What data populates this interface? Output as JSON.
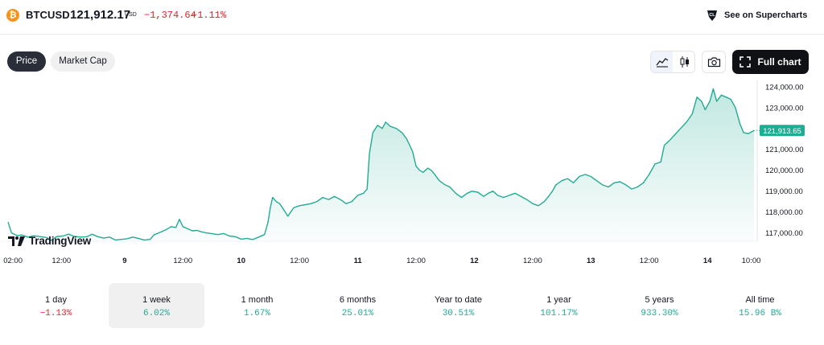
{
  "header": {
    "logo_letter": "₿",
    "symbol": "BTCUSD",
    "price": "121,912.17",
    "price_unit": "USD",
    "change": "−1,374.64",
    "change_pct": "−1.11%",
    "supercharts_label": "See on Supercharts",
    "change_color": "#e5202e"
  },
  "toolbar": {
    "tabs": [
      {
        "label": "Price",
        "active": true
      },
      {
        "label": "Market Cap",
        "active": false
      }
    ],
    "full_chart_label": "Full chart",
    "icons": [
      "area-chart-icon",
      "candlestick-icon",
      "camera-icon",
      "fullscreen-icon"
    ]
  },
  "chart_data": {
    "type": "area",
    "title": "",
    "xlabel": "",
    "ylabel": "",
    "line_color": "#22ab94",
    "fill_color": "#22ab94",
    "ylim": [
      116600,
      124300
    ],
    "y_ticks": [
      124000,
      123000,
      122000,
      121000,
      120000,
      119000,
      118000,
      117000
    ],
    "y_tick_labels": [
      "124,000.00",
      "123,000.00",
      "122,000.00",
      "121,000.00",
      "120,000.00",
      "119,000.00",
      "118,000.00",
      "117,000.00"
    ],
    "x_ticks": [
      {
        "day": 0.042,
        "label": "02:00"
      },
      {
        "day": 0.458,
        "label": "12:00"
      },
      {
        "day": 1.0,
        "label": "9"
      },
      {
        "day": 1.5,
        "label": "12:00"
      },
      {
        "day": 2.0,
        "label": "10"
      },
      {
        "day": 2.5,
        "label": "12:00"
      },
      {
        "day": 3.0,
        "label": "11"
      },
      {
        "day": 3.5,
        "label": "12:00"
      },
      {
        "day": 4.0,
        "label": "12"
      },
      {
        "day": 4.5,
        "label": "12:00"
      },
      {
        "day": 5.0,
        "label": "13"
      },
      {
        "day": 5.5,
        "label": "12:00"
      },
      {
        "day": 6.0,
        "label": "14"
      },
      {
        "day": 6.375,
        "label": "10:00"
      }
    ],
    "last_price_label": "121,913.65",
    "series": [
      {
        "values": [
          [
            0.0,
            117520
          ],
          [
            0.03,
            117000
          ],
          [
            0.08,
            116870
          ],
          [
            0.12,
            116900
          ],
          [
            0.17,
            116800
          ],
          [
            0.22,
            116860
          ],
          [
            0.28,
            116820
          ],
          [
            0.33,
            116780
          ],
          [
            0.37,
            116640
          ],
          [
            0.42,
            116830
          ],
          [
            0.47,
            116850
          ],
          [
            0.52,
            116940
          ],
          [
            0.57,
            116830
          ],
          [
            0.62,
            116800
          ],
          [
            0.68,
            116820
          ],
          [
            0.72,
            116940
          ],
          [
            0.77,
            116820
          ],
          [
            0.82,
            116750
          ],
          [
            0.87,
            116800
          ],
          [
            0.92,
            116660
          ],
          [
            0.97,
            116690
          ],
          [
            1.02,
            116720
          ],
          [
            1.07,
            116800
          ],
          [
            1.12,
            116730
          ],
          [
            1.17,
            116660
          ],
          [
            1.22,
            116690
          ],
          [
            1.25,
            116900
          ],
          [
            1.3,
            117020
          ],
          [
            1.35,
            117140
          ],
          [
            1.4,
            117300
          ],
          [
            1.44,
            117260
          ],
          [
            1.47,
            117650
          ],
          [
            1.5,
            117300
          ],
          [
            1.54,
            117200
          ],
          [
            1.58,
            117100
          ],
          [
            1.62,
            117120
          ],
          [
            1.66,
            117050
          ],
          [
            1.7,
            117000
          ],
          [
            1.75,
            116960
          ],
          [
            1.8,
            116920
          ],
          [
            1.85,
            116970
          ],
          [
            1.9,
            116850
          ],
          [
            1.95,
            116820
          ],
          [
            2.0,
            116700
          ],
          [
            2.05,
            116740
          ],
          [
            2.1,
            116680
          ],
          [
            2.15,
            116800
          ],
          [
            2.2,
            116920
          ],
          [
            2.23,
            117500
          ],
          [
            2.25,
            118200
          ],
          [
            2.27,
            118700
          ],
          [
            2.3,
            118500
          ],
          [
            2.33,
            118400
          ],
          [
            2.36,
            118150
          ],
          [
            2.4,
            117800
          ],
          [
            2.45,
            118200
          ],
          [
            2.5,
            118300
          ],
          [
            2.55,
            118350
          ],
          [
            2.6,
            118400
          ],
          [
            2.65,
            118500
          ],
          [
            2.7,
            118700
          ],
          [
            2.75,
            118600
          ],
          [
            2.8,
            118750
          ],
          [
            2.85,
            118600
          ],
          [
            2.9,
            118400
          ],
          [
            2.95,
            118500
          ],
          [
            3.0,
            118800
          ],
          [
            3.05,
            118900
          ],
          [
            3.08,
            119100
          ],
          [
            3.1,
            120800
          ],
          [
            3.13,
            121800
          ],
          [
            3.17,
            122150
          ],
          [
            3.21,
            122000
          ],
          [
            3.24,
            122300
          ],
          [
            3.28,
            122100
          ],
          [
            3.33,
            122000
          ],
          [
            3.38,
            121800
          ],
          [
            3.42,
            121500
          ],
          [
            3.47,
            120900
          ],
          [
            3.5,
            120200
          ],
          [
            3.53,
            120000
          ],
          [
            3.56,
            119900
          ],
          [
            3.6,
            120100
          ],
          [
            3.63,
            120000
          ],
          [
            3.66,
            119800
          ],
          [
            3.7,
            119500
          ],
          [
            3.75,
            119300
          ],
          [
            3.79,
            119200
          ],
          [
            3.84,
            118900
          ],
          [
            3.89,
            118700
          ],
          [
            3.94,
            118900
          ],
          [
            3.98,
            119000
          ],
          [
            4.03,
            118950
          ],
          [
            4.08,
            118750
          ],
          [
            4.12,
            118900
          ],
          [
            4.16,
            119000
          ],
          [
            4.2,
            118800
          ],
          [
            4.25,
            118700
          ],
          [
            4.3,
            118800
          ],
          [
            4.35,
            118900
          ],
          [
            4.4,
            118750
          ],
          [
            4.45,
            118600
          ],
          [
            4.5,
            118400
          ],
          [
            4.55,
            118300
          ],
          [
            4.6,
            118500
          ],
          [
            4.63,
            118700
          ],
          [
            4.67,
            119000
          ],
          [
            4.7,
            119300
          ],
          [
            4.75,
            119500
          ],
          [
            4.8,
            119600
          ],
          [
            4.85,
            119400
          ],
          [
            4.9,
            119700
          ],
          [
            4.95,
            119800
          ],
          [
            5.0,
            119700
          ],
          [
            5.05,
            119500
          ],
          [
            5.1,
            119300
          ],
          [
            5.15,
            119200
          ],
          [
            5.2,
            119400
          ],
          [
            5.25,
            119450
          ],
          [
            5.3,
            119300
          ],
          [
            5.35,
            119100
          ],
          [
            5.4,
            119200
          ],
          [
            5.45,
            119400
          ],
          [
            5.5,
            119800
          ],
          [
            5.55,
            120300
          ],
          [
            5.6,
            120400
          ],
          [
            5.63,
            121200
          ],
          [
            5.67,
            121400
          ],
          [
            5.72,
            121700
          ],
          [
            5.77,
            122000
          ],
          [
            5.82,
            122300
          ],
          [
            5.87,
            122700
          ],
          [
            5.91,
            123500
          ],
          [
            5.95,
            123300
          ],
          [
            5.98,
            122900
          ],
          [
            6.02,
            123300
          ],
          [
            6.05,
            123900
          ],
          [
            6.08,
            123300
          ],
          [
            6.12,
            123600
          ],
          [
            6.16,
            123500
          ],
          [
            6.2,
            123400
          ],
          [
            6.24,
            123000
          ],
          [
            6.28,
            122200
          ],
          [
            6.31,
            121800
          ],
          [
            6.35,
            121750
          ],
          [
            6.4,
            121900
          ]
        ]
      }
    ]
  },
  "watermark": {
    "logo_text": "TradingView"
  },
  "periods": [
    {
      "label": "1 day",
      "value": "−1.13%",
      "direction": "down",
      "active": false
    },
    {
      "label": "1 week",
      "value": "6.02%",
      "direction": "up",
      "active": true
    },
    {
      "label": "1 month",
      "value": "1.67%",
      "direction": "up",
      "active": false
    },
    {
      "label": "6 months",
      "value": "25.01%",
      "direction": "up",
      "active": false
    },
    {
      "label": "Year to date",
      "value": "30.51%",
      "direction": "up",
      "active": false
    },
    {
      "label": "1 year",
      "value": "101.17%",
      "direction": "up",
      "active": false
    },
    {
      "label": "5 years",
      "value": "933.30%",
      "direction": "up",
      "active": false
    },
    {
      "label": "All time",
      "value": "15.96 B%",
      "direction": "up",
      "active": false
    }
  ]
}
